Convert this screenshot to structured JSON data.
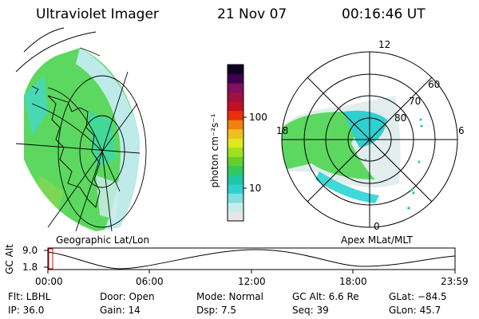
{
  "header": {
    "instrument": "Ultraviolet Imager",
    "date": "21 Nov 07",
    "time": "00:16:46 UT"
  },
  "left_panel": {
    "label": "Geographic Lat/Lon"
  },
  "right_panel": {
    "label": "Apex MLat/MLT",
    "mlt_labels": [
      "12",
      "18",
      "6",
      "0"
    ],
    "mlat_labels": [
      "60",
      "70",
      "80"
    ]
  },
  "colorbar": {
    "label": "photon cm⁻²s⁻¹",
    "ticks": [
      "100",
      "10"
    ],
    "scale": "log",
    "colors": [
      "#e6e6e6",
      "#c8ecec",
      "#7fe0e0",
      "#30d0d0",
      "#20c8a0",
      "#30c860",
      "#60d030",
      "#a0e020",
      "#e0e820",
      "#f0c020",
      "#f08010",
      "#e83010",
      "#c01020",
      "#a01040",
      "#801060",
      "#400050",
      "#100020"
    ]
  },
  "altitude_plot": {
    "axis_label": "GC Alt",
    "y_ticks": [
      "9.0",
      "1.8"
    ],
    "x_ticks": [
      "00:00",
      "06:00",
      "12:00",
      "18:00",
      "23:59"
    ]
  },
  "footer": {
    "filter": "Flt: LBHL",
    "door": "Door: Open",
    "mode": "Mode: Normal",
    "gc_alt": "GC Alt: 6.6 Re",
    "glat": "GLat: −84.5",
    "ip": "IP: 36.0",
    "gain": "Gain: 14",
    "dsp": "Dsp:    7.5",
    "seq": "Seq: 39",
    "glon": "GLon:  45.7"
  }
}
